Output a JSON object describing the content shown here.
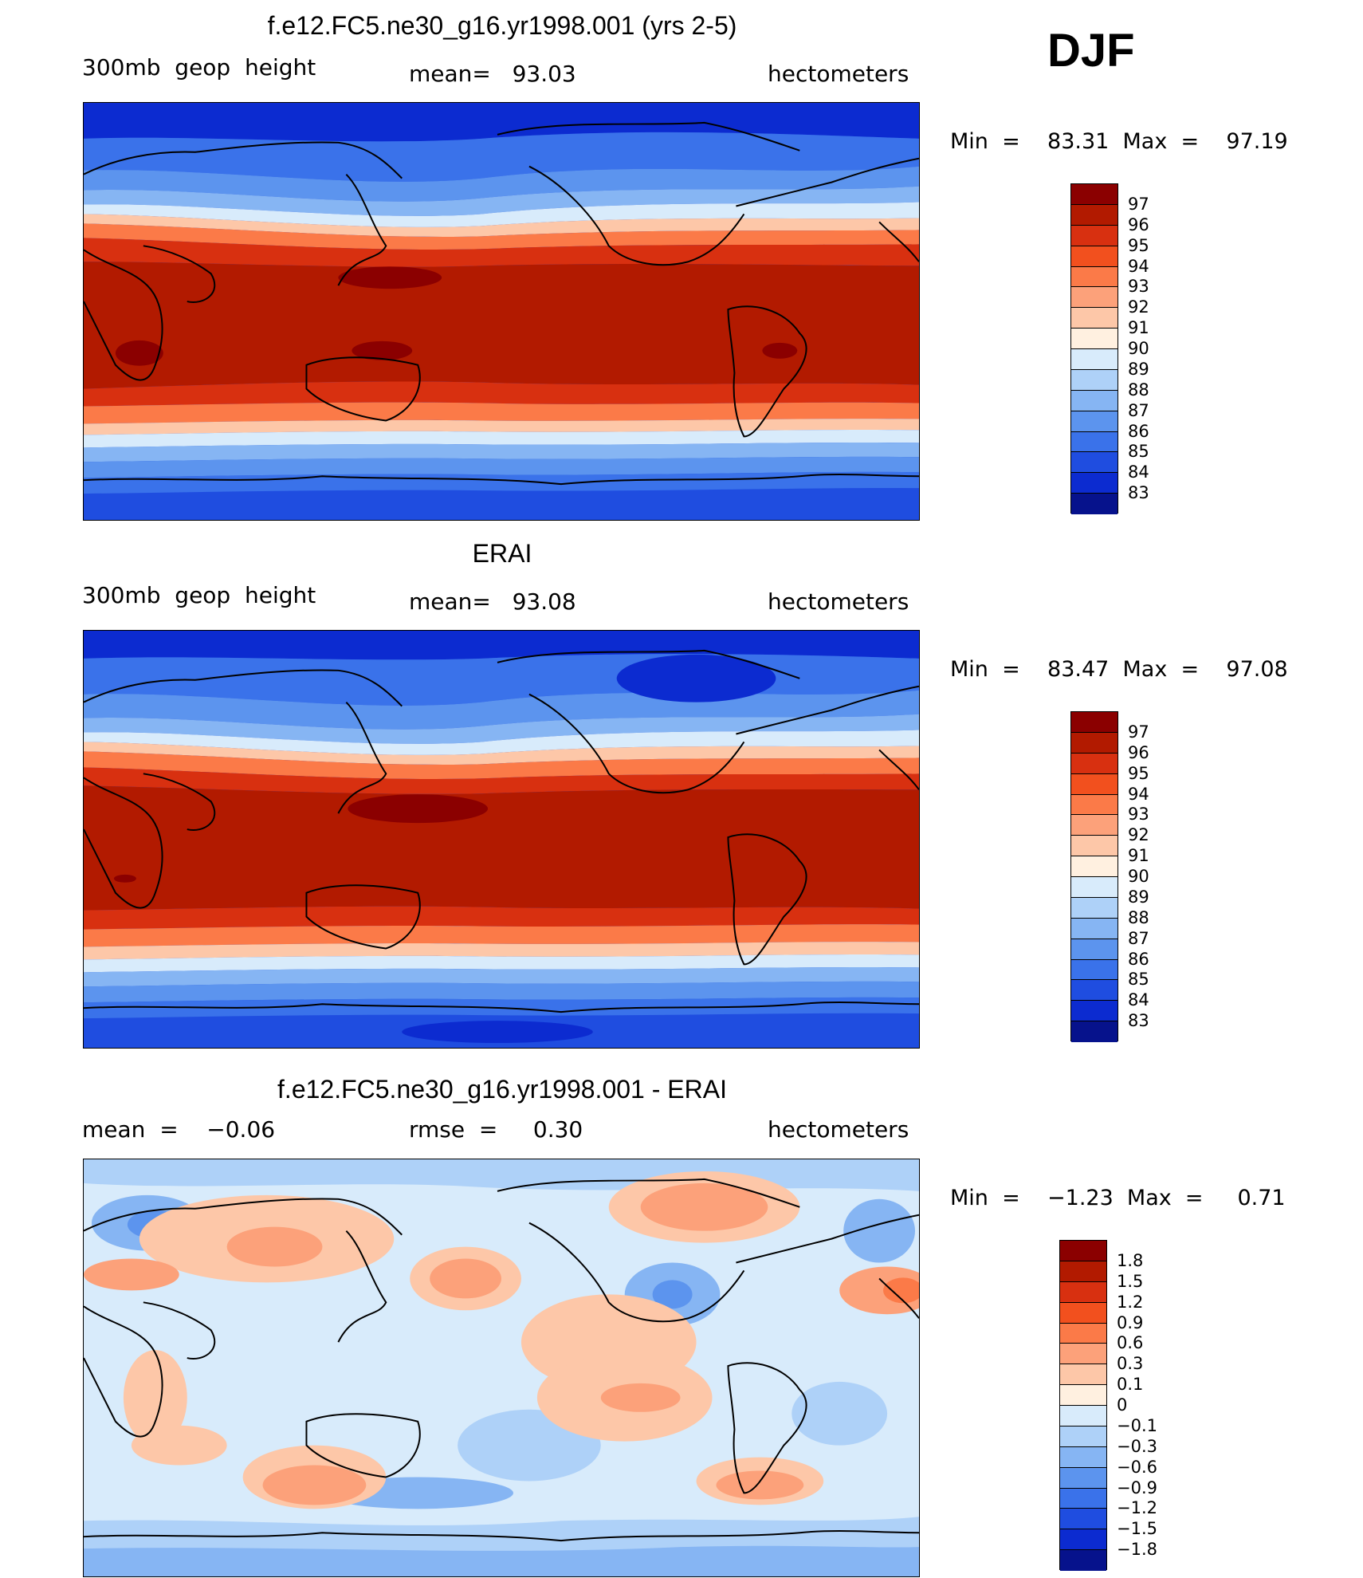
{
  "season": "DJF",
  "panels": [
    {
      "title": "f.e12.FC5.ne30_g16.yr1998.001 (yrs 2-5)",
      "left_label": "300mb  geop  height",
      "center_label": "mean=   93.03",
      "right_label": "hectometers",
      "minmax": "Min  =    83.31  Max  =    97.19",
      "colorbar": {
        "levels": [
          "97",
          "96",
          "95",
          "94",
          "93",
          "92",
          "91",
          "90",
          "89",
          "88",
          "87",
          "86",
          "85",
          "84",
          "83"
        ],
        "colors": [
          "#8b0000",
          "#b21a00",
          "#d83010",
          "#f2501e",
          "#fb7a48",
          "#fca17a",
          "#fdc7a8",
          "#fff0e0",
          "#d8ebfb",
          "#aed1f8",
          "#86b5f3",
          "#5c94ee",
          "#3a72ea",
          "#1f4de0",
          "#0c2bd0",
          "#06128c"
        ]
      }
    },
    {
      "title": "ERAI",
      "left_label": "300mb  geop  height",
      "center_label": "mean=   93.08",
      "right_label": "hectometers",
      "minmax": "Min  =    83.47  Max  =    97.08",
      "colorbar": {
        "levels": [
          "97",
          "96",
          "95",
          "94",
          "93",
          "92",
          "91",
          "90",
          "89",
          "88",
          "87",
          "86",
          "85",
          "84",
          "83"
        ],
        "colors": [
          "#8b0000",
          "#b21a00",
          "#d83010",
          "#f2501e",
          "#fb7a48",
          "#fca17a",
          "#fdc7a8",
          "#fff0e0",
          "#d8ebfb",
          "#aed1f8",
          "#86b5f3",
          "#5c94ee",
          "#3a72ea",
          "#1f4de0",
          "#0c2bd0",
          "#06128c"
        ]
      }
    },
    {
      "title": "f.e12.FC5.ne30_g16.yr1998.001 - ERAI",
      "left_label": "mean  =    −0.06",
      "center_label": "rmse  =     0.30",
      "right_label": "hectometers",
      "minmax": "Min  =    −1.23  Max  =     0.71",
      "colorbar": {
        "levels": [
          "1.8",
          "1.5",
          "1.2",
          "0.9",
          "0.6",
          "0.3",
          "0.1",
          "0",
          "−0.1",
          "−0.3",
          "−0.6",
          "−0.9",
          "−1.2",
          "−1.5",
          "−1.8"
        ],
        "colors": [
          "#8b0000",
          "#b21a00",
          "#d83010",
          "#f2501e",
          "#fb7a48",
          "#fca17a",
          "#fdc7a8",
          "#fff0e0",
          "#d8ebfb",
          "#aed1f8",
          "#86b5f3",
          "#5c94ee",
          "#3a72ea",
          "#1f4de0",
          "#0c2bd0",
          "#06128c"
        ]
      }
    }
  ]
}
